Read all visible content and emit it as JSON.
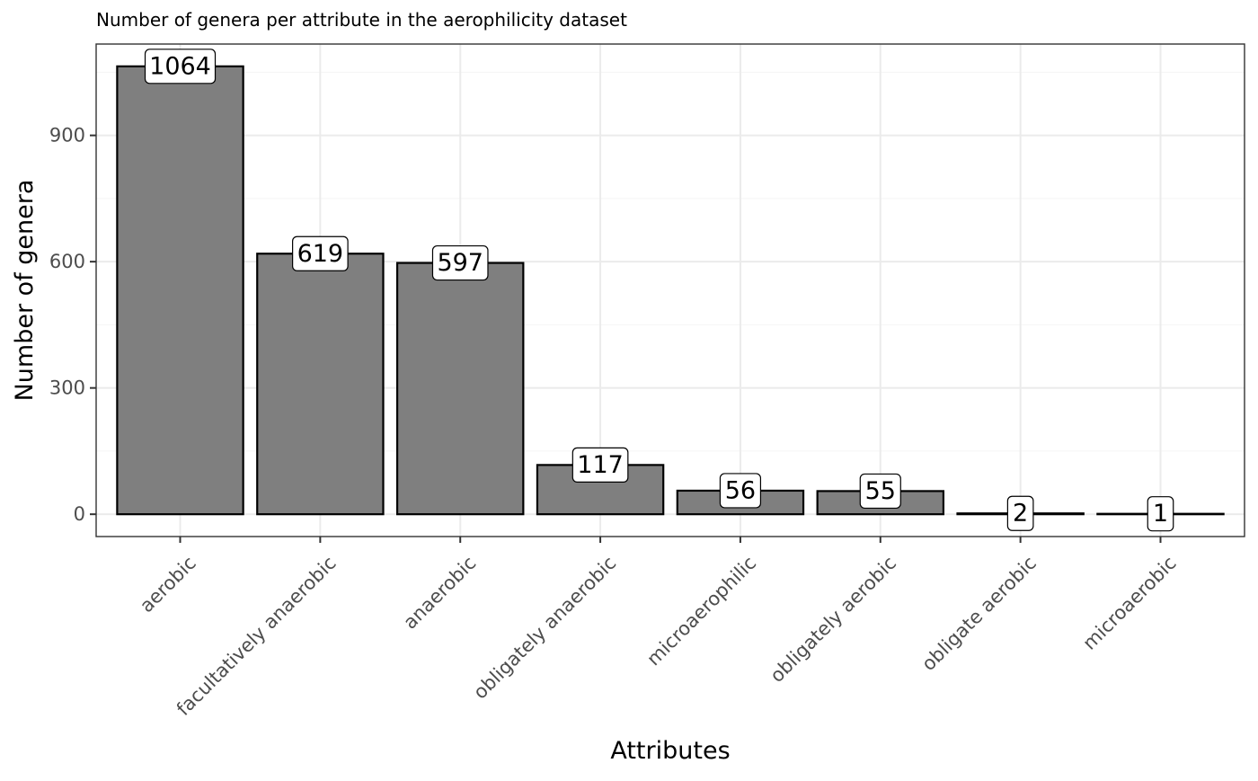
{
  "chart_data": {
    "type": "bar",
    "title": "Number of genera per attribute in the aerophilicity dataset",
    "xlabel": "Attributes",
    "ylabel": "Number of genera",
    "categories": [
      "aerobic",
      "facultatively anaerobic",
      "anaerobic",
      "obligately anaerobic",
      "microaerophilic",
      "obligately aerobic",
      "obligate aerobic",
      "microaerobic"
    ],
    "values": [
      1064,
      619,
      597,
      117,
      56,
      55,
      2,
      1
    ],
    "data_labels": [
      "1064",
      "619",
      "597",
      "117",
      "56",
      "55",
      "2",
      "1"
    ],
    "ylim": [
      -53,
      1117
    ],
    "yticks": [
      0,
      300,
      600,
      900
    ],
    "ytick_labels": [
      "0",
      "300",
      "600",
      "900"
    ],
    "grid": true,
    "legend": "none",
    "colors": {
      "bar_fill": "#7f7f7f",
      "bar_stroke": "#000000",
      "grid_major": "#ebebeb",
      "grid_minor": "#f5f5f5",
      "panel_border": "#333333",
      "tick_text": "#4d4d4d",
      "label_bg": "#ffffff"
    }
  }
}
